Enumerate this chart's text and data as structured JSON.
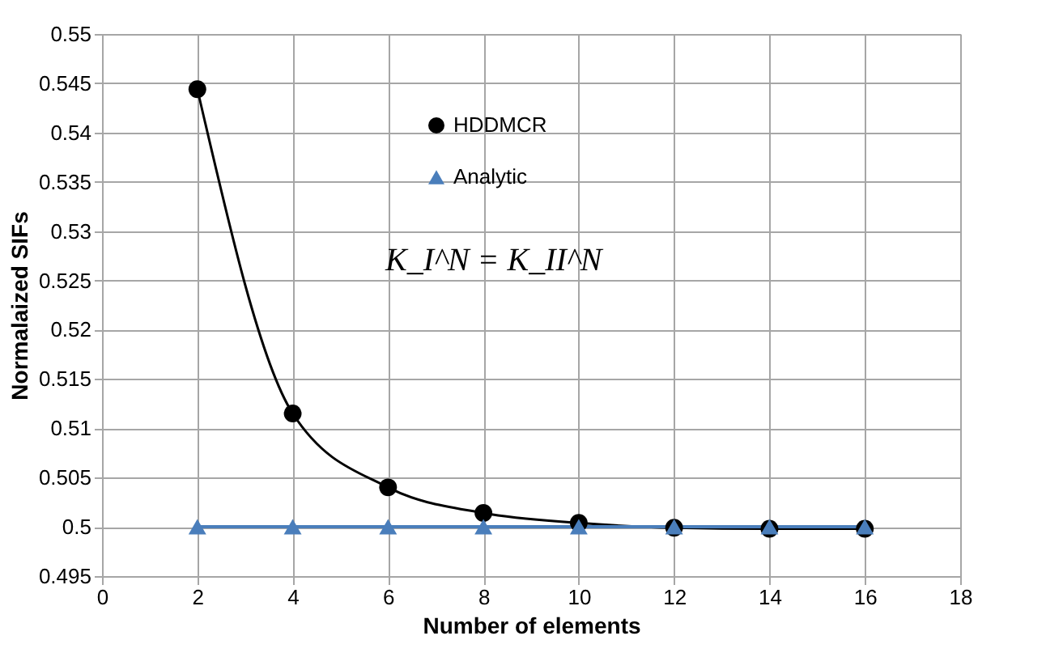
{
  "chart_data": {
    "type": "line",
    "xlabel": "Number of elements",
    "ylabel": "Normalaized  SIFs",
    "x": [
      2,
      4,
      6,
      8,
      10,
      12,
      14,
      16
    ],
    "series": [
      {
        "name": "HDDMCR",
        "color": "#000000",
        "marker": "circle",
        "values": [
          0.5444,
          0.5115,
          0.504,
          0.5014,
          0.5004,
          0.4999,
          0.4998,
          0.4998
        ]
      },
      {
        "name": "Analytic",
        "color": "#4a7ebb",
        "marker": "triangle",
        "values": [
          0.5,
          0.5,
          0.5,
          0.5,
          0.5,
          0.5,
          0.5,
          0.5
        ]
      }
    ],
    "xlim": [
      0,
      18
    ],
    "xticks": [
      0,
      2,
      4,
      6,
      8,
      10,
      12,
      14,
      16,
      18
    ],
    "ylim": [
      0.495,
      0.55
    ],
    "yticks": [
      0.495,
      0.5,
      0.505,
      0.51,
      0.515,
      0.52,
      0.525,
      0.53,
      0.535,
      0.54,
      0.545,
      0.55
    ],
    "grid": true,
    "legend": "top",
    "annotations": [
      "K_I^N = K_II^N"
    ]
  }
}
